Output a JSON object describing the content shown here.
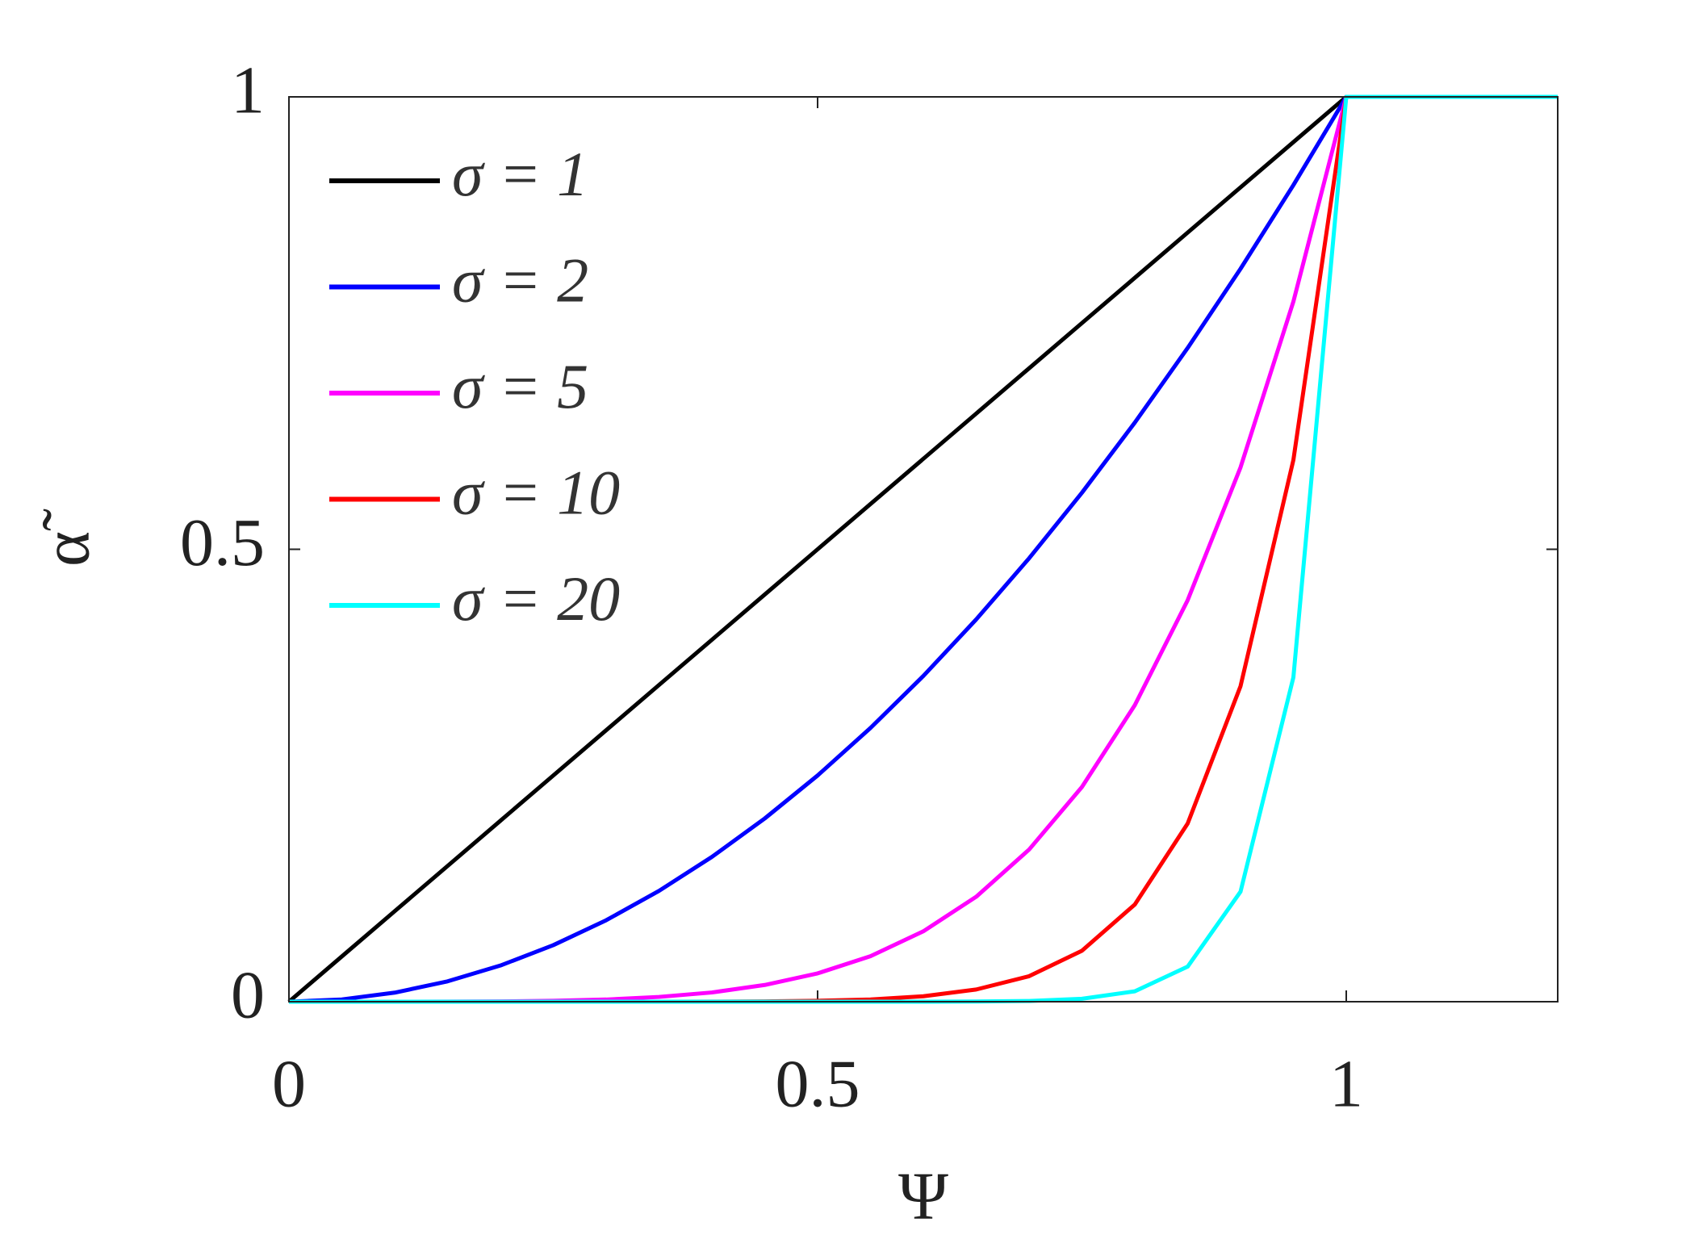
{
  "chart_data": {
    "type": "line",
    "x_label": "Ψ",
    "y_label": "α̃",
    "x": [
      0,
      0.05,
      0.1,
      0.15,
      0.2,
      0.25,
      0.3,
      0.35,
      0.4,
      0.45,
      0.5,
      0.55,
      0.6,
      0.65,
      0.7,
      0.75,
      0.8,
      0.85,
      0.9,
      0.95,
      1,
      1.05,
      1.1,
      1.15,
      1.2
    ],
    "series": [
      {
        "name": "σ = 1",
        "color": "#000000",
        "values": [
          0,
          0.05,
          0.1,
          0.15,
          0.2,
          0.25,
          0.3,
          0.35,
          0.4,
          0.45,
          0.5,
          0.55,
          0.6,
          0.65,
          0.7,
          0.75,
          0.8,
          0.85,
          0.9,
          0.95,
          1,
          1,
          1,
          1,
          1
        ]
      },
      {
        "name": "σ = 2",
        "color": "#0000ff",
        "values": [
          0,
          0.0025,
          0.01,
          0.0225,
          0.04,
          0.0625,
          0.09,
          0.1225,
          0.16,
          0.2025,
          0.25,
          0.3025,
          0.36,
          0.4225,
          0.49,
          0.5625,
          0.64,
          0.7225,
          0.81,
          0.9025,
          1,
          1,
          1,
          1,
          1
        ]
      },
      {
        "name": "σ = 5",
        "color": "#ff00ff",
        "values": [
          0,
          0,
          0,
          0.0001,
          0.0003,
          0.001,
          0.0024,
          0.0053,
          0.0102,
          0.0185,
          0.0313,
          0.0503,
          0.0778,
          0.116,
          0.1681,
          0.2373,
          0.3277,
          0.4437,
          0.5905,
          0.7738,
          1,
          1,
          1,
          1,
          1
        ]
      },
      {
        "name": "σ = 10",
        "color": "#ff0000",
        "values": [
          0,
          0,
          0,
          0,
          0,
          0,
          0,
          0,
          0.0001,
          0.0003,
          0.001,
          0.0025,
          0.006,
          0.0135,
          0.0282,
          0.0563,
          0.1074,
          0.1969,
          0.3487,
          0.5987,
          1,
          1,
          1,
          1,
          1
        ]
      },
      {
        "name": "σ = 20",
        "color": "#00ffff",
        "values": [
          0,
          0,
          0,
          0,
          0,
          0,
          0,
          0,
          0,
          0,
          0,
          0,
          0,
          0.0002,
          0.0008,
          0.0032,
          0.0115,
          0.0388,
          0.1216,
          0.3585,
          1,
          1,
          1,
          1,
          1
        ]
      }
    ],
    "xlim": [
      0,
      1.2
    ],
    "xticks": [
      0,
      0.5,
      1
    ],
    "ylim": [
      0,
      1
    ],
    "yticks": [
      0,
      0.5,
      1
    ],
    "grid": false,
    "legend": "upper left"
  }
}
